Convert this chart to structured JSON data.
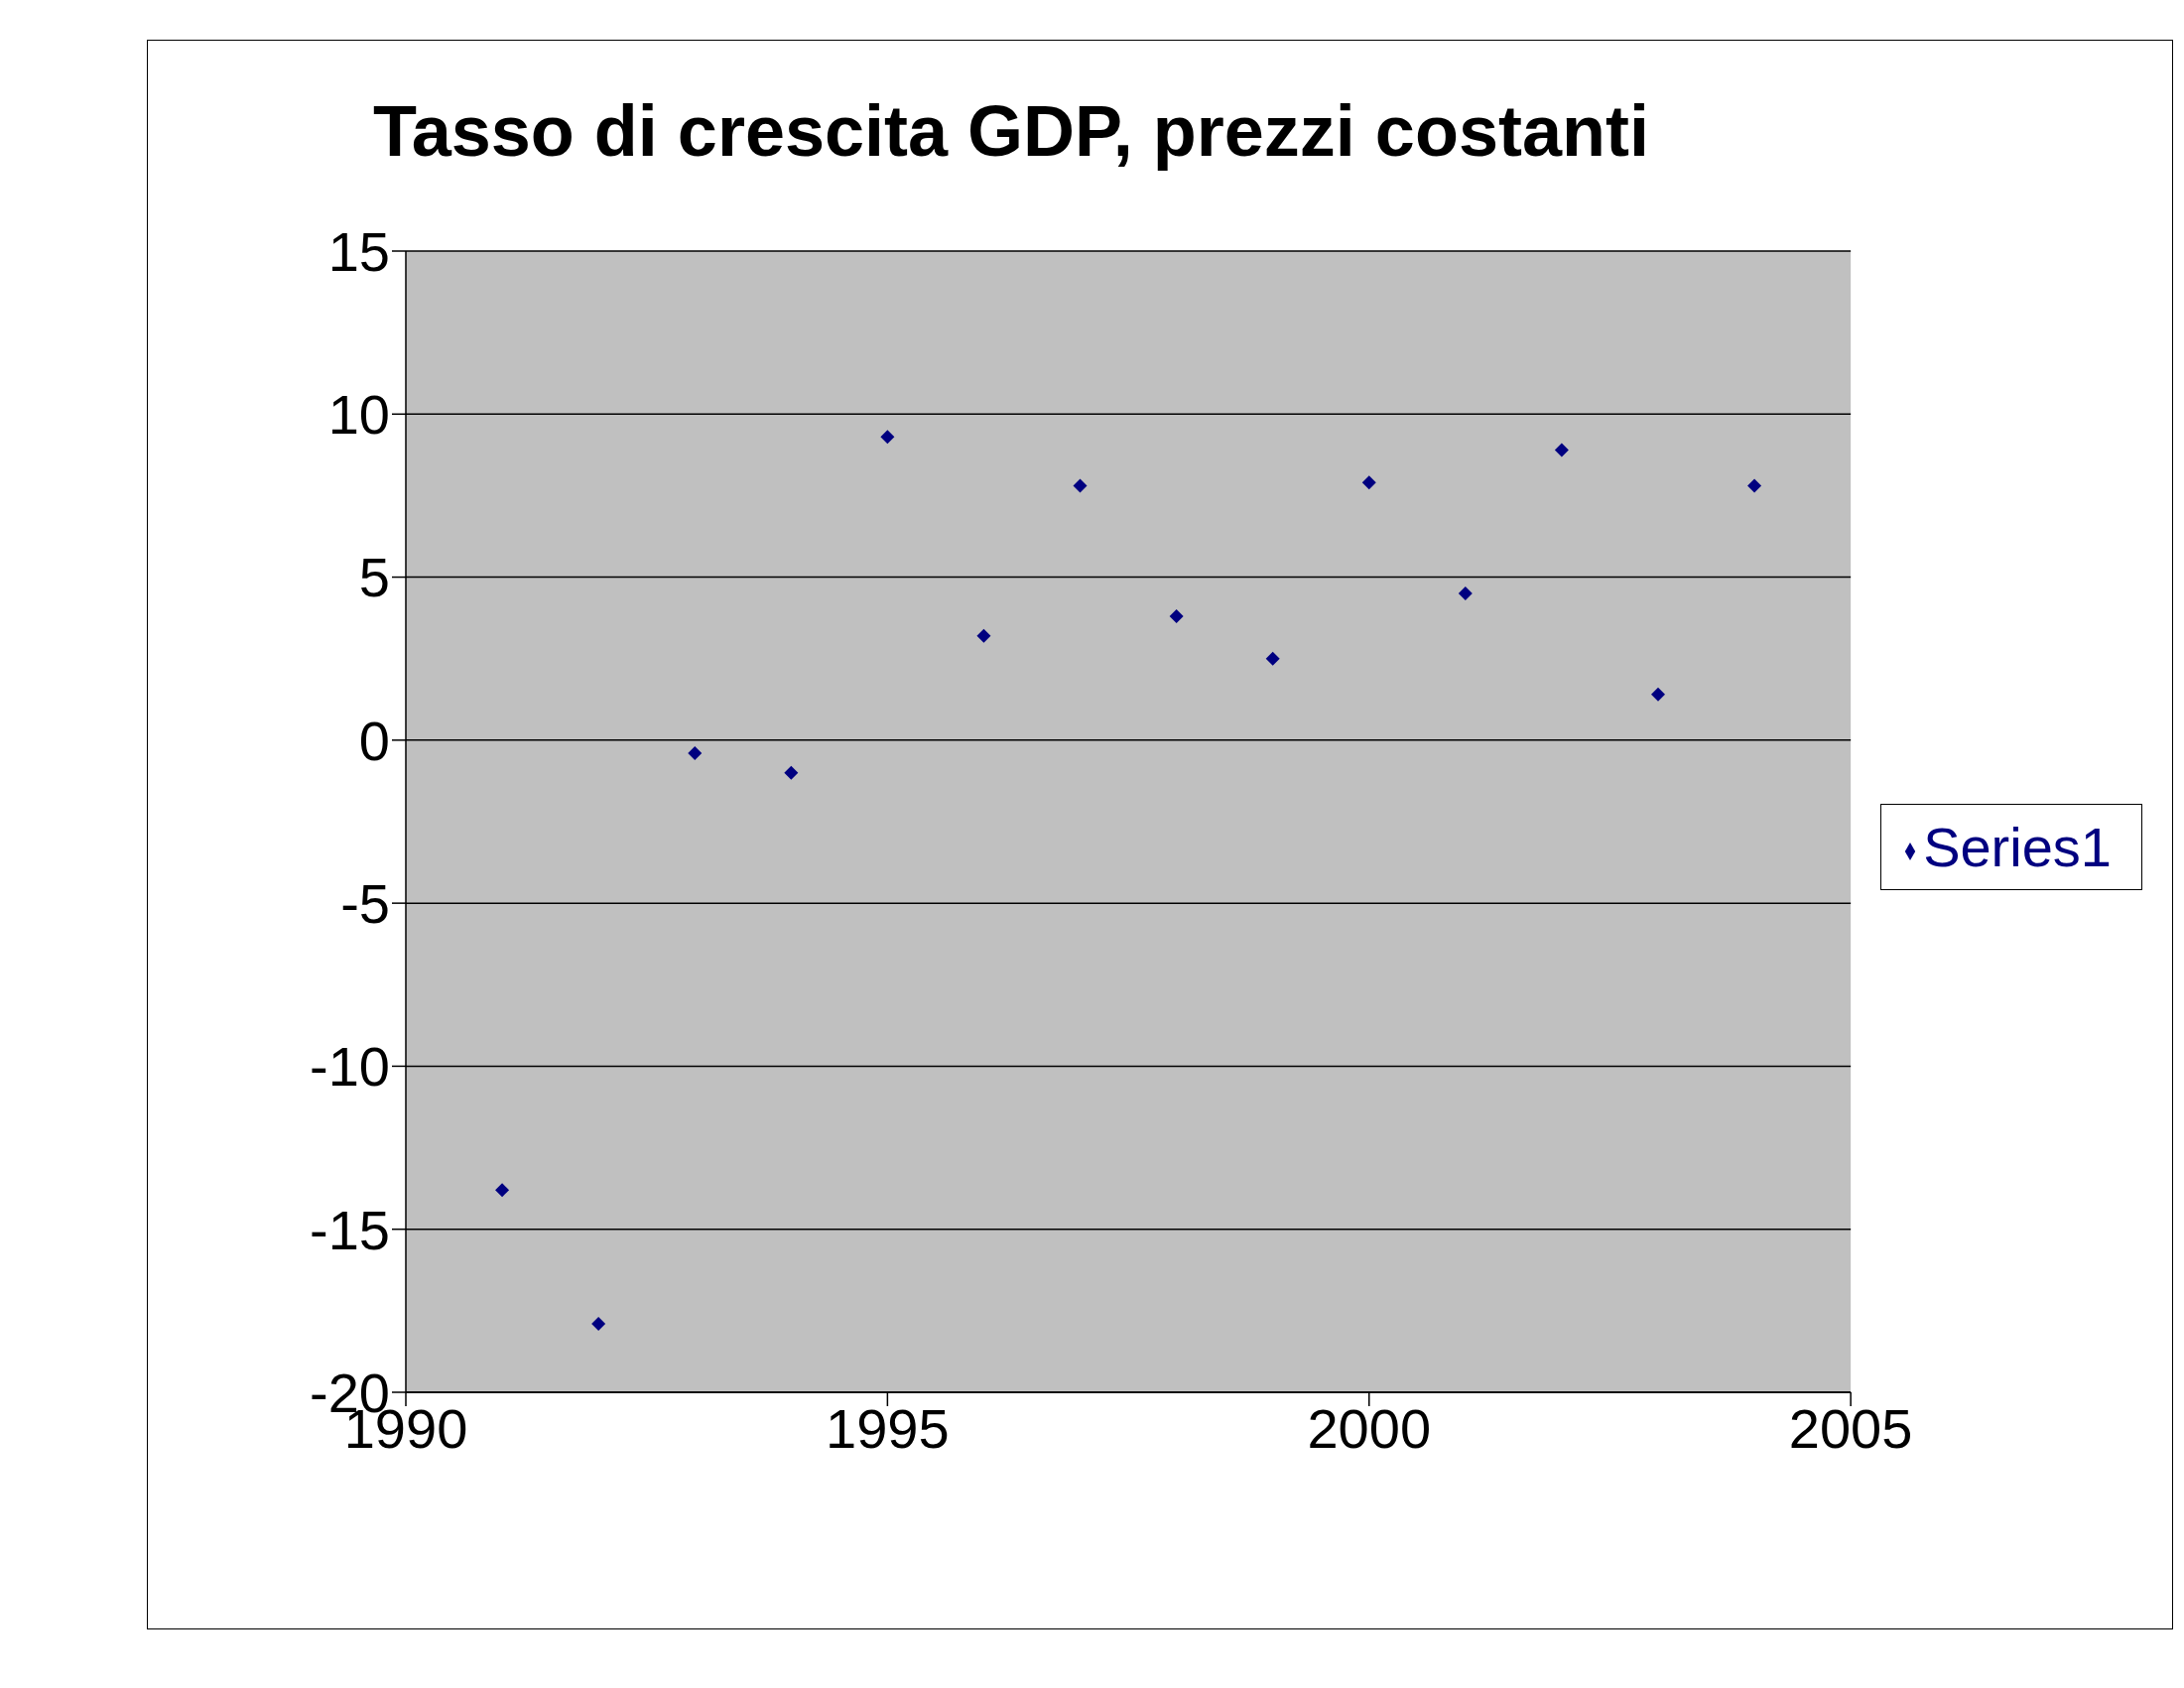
{
  "chart_data": {
    "type": "scatter",
    "title": "Tasso di crescita GDP, prezzi costanti",
    "x": [
      1991,
      1992,
      1993,
      1994,
      1995,
      1996,
      1997,
      1998,
      1999,
      2000,
      2001,
      2002,
      2003,
      2004
    ],
    "series": [
      {
        "name": "Series1",
        "color": "#000080",
        "values": [
          -13.8,
          -17.9,
          -0.4,
          -1.0,
          9.3,
          3.2,
          7.8,
          3.8,
          2.5,
          7.9,
          4.5,
          8.9,
          1.4,
          7.8
        ]
      }
    ],
    "xlim": [
      1990,
      2005
    ],
    "xticks": [
      1990,
      1995,
      2000,
      2005
    ],
    "ylim": [
      -20,
      15
    ],
    "yticks": [
      -20,
      -15,
      -10,
      -5,
      0,
      5,
      10,
      15
    ],
    "grid": "y",
    "legend": "right",
    "marker": "diamond"
  }
}
